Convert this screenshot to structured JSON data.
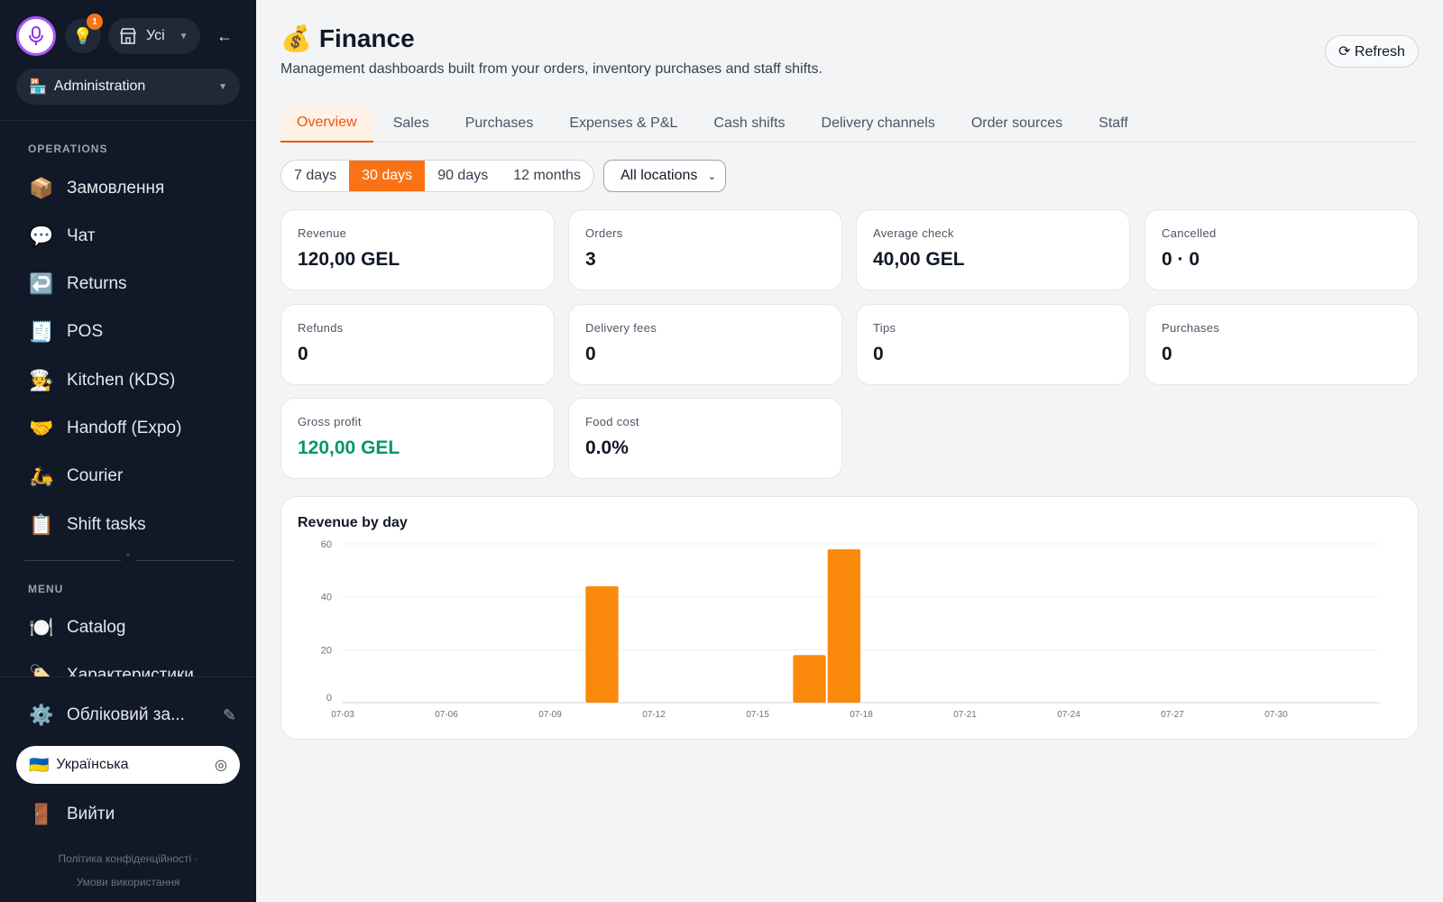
{
  "sidebar": {
    "store_select": {
      "label": "Усі",
      "icon": "store-icon"
    },
    "notifications_count": "1",
    "back_arrow": "←",
    "admin_select": {
      "emoji": "🏪",
      "label": "Administration"
    },
    "sections": {
      "operations": "OPERATIONS",
      "menu": "MENU"
    },
    "operations_items": [
      {
        "emoji": "📦",
        "label": "Замовлення"
      },
      {
        "emoji": "💬",
        "label": "Чат"
      },
      {
        "emoji": "↩️",
        "label": "Returns"
      },
      {
        "emoji": "🧾",
        "label": "POS"
      },
      {
        "emoji": "🧑‍🍳",
        "label": "Kitchen (KDS)"
      },
      {
        "emoji": "🤝",
        "label": "Handoff (Expo)"
      },
      {
        "emoji": "🛵",
        "label": "Courier"
      },
      {
        "emoji": "📋",
        "label": "Shift tasks"
      }
    ],
    "menu_items": [
      {
        "emoji": "🍽️",
        "label": "Catalog"
      },
      {
        "emoji": "🏷️",
        "label": "Характеристики"
      }
    ],
    "account": {
      "emoji": "⚙️",
      "label": "Обліковий за..."
    },
    "language": {
      "flag": "🇺🇦",
      "label": "Українська"
    },
    "logout": {
      "emoji": "🚪",
      "label": "Вийти"
    },
    "legal": {
      "privacy": "Політика конфіденційності",
      "separator": "·",
      "terms": "Умови використання"
    }
  },
  "header": {
    "emoji": "💰",
    "title": "Finance",
    "subtitle": "Management dashboards built from your orders, inventory purchases and staff shifts.",
    "refresh_label": "⟳ Refresh"
  },
  "tabs": [
    "Overview",
    "Sales",
    "Purchases",
    "Expenses & P&L",
    "Cash shifts",
    "Delivery channels",
    "Order sources",
    "Staff"
  ],
  "active_tab": "Overview",
  "ranges": [
    "7 days",
    "30 days",
    "90 days",
    "12 months"
  ],
  "active_range": "30 days",
  "location_select": "All locations",
  "kpis": [
    {
      "label": "Revenue",
      "value": "120,00 GEL"
    },
    {
      "label": "Orders",
      "value": "3"
    },
    {
      "label": "Average check",
      "value": "40,00 GEL"
    },
    {
      "label": "Cancelled",
      "value": "0 · 0"
    },
    {
      "label": "Refunds",
      "value": "0"
    },
    {
      "label": "Delivery fees",
      "value": "0"
    },
    {
      "label": "Tips",
      "value": "0"
    },
    {
      "label": "Purchases",
      "value": "0"
    },
    {
      "label": "Gross profit",
      "value": "120,00 GEL",
      "color": "#059669"
    },
    {
      "label": "Food cost",
      "value": "0.0%"
    }
  ],
  "colors": {
    "accent": "#f97316",
    "bar": "#fb8a0c",
    "positive": "#059669",
    "sidebar_bg": "#111827"
  },
  "chart_data": {
    "type": "bar",
    "title": "Revenue by day",
    "x": [
      "07-03",
      "07-04",
      "07-05",
      "07-06",
      "07-07",
      "07-08",
      "07-09",
      "07-10",
      "07-11",
      "07-12",
      "07-13",
      "07-14",
      "07-15",
      "07-16",
      "07-17",
      "07-18",
      "07-19",
      "07-20",
      "07-21",
      "07-22",
      "07-23",
      "07-24",
      "07-25",
      "07-26",
      "07-27",
      "07-28",
      "07-29",
      "07-30",
      "07-31",
      "08-01"
    ],
    "x_tick_labels": [
      "07-03",
      "07-06",
      "07-09",
      "07-12",
      "07-15",
      "07-18",
      "07-21",
      "07-24",
      "07-27",
      "07-30"
    ],
    "values": [
      0,
      0,
      0,
      0,
      0,
      0,
      0,
      44,
      0,
      0,
      0,
      0,
      0,
      18,
      58,
      0,
      0,
      0,
      0,
      0,
      0,
      0,
      0,
      0,
      0,
      0,
      0,
      0,
      0,
      0
    ],
    "ylim": [
      0,
      60
    ],
    "y_ticks": [
      0,
      20,
      40,
      60
    ],
    "grid": true,
    "xlabel": "",
    "ylabel": ""
  }
}
